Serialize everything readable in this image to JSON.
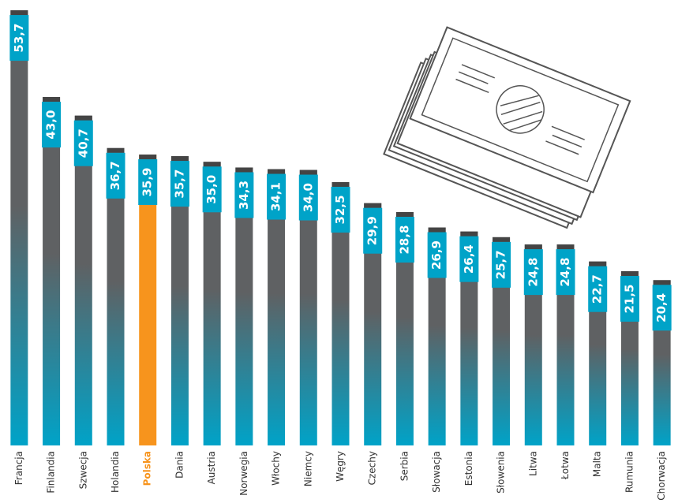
{
  "chart_data": {
    "type": "bar",
    "categories": [
      "Francja",
      "Finlandia",
      "Szwecja",
      "Holandia",
      "Polska",
      "Dania",
      "Austria",
      "Norwegia",
      "Włochy",
      "Niemcy",
      "Węgry",
      "Czechy",
      "Serbia",
      "Słowacja",
      "Estonia",
      "Słowenia",
      "Litwa",
      "Łotwa",
      "Malta",
      "Rumunia",
      "Chorwacja"
    ],
    "values": [
      53.7,
      43.0,
      40.7,
      36.7,
      35.9,
      35.7,
      35.0,
      34.3,
      34.1,
      34.0,
      32.5,
      29.9,
      28.8,
      26.9,
      26.4,
      25.7,
      24.8,
      24.8,
      22.7,
      21.5,
      20.4
    ],
    "value_labels": [
      "53,7",
      "43,0",
      "40,7",
      "36,7",
      "35,9",
      "35,7",
      "35,0",
      "34,3",
      "34,1",
      "34,0",
      "32,5",
      "29,9",
      "28,8",
      "26,9",
      "26,4",
      "25,7",
      "24,8",
      "24,8",
      "22,7",
      "21,5",
      "20,4"
    ],
    "color": "#00a3c8",
    "colors": [
      "#00a3c8",
      "#00a3c8",
      "#00a3c8",
      "#00a3c8",
      "#f7941d",
      "#00a3c8",
      "#00a3c8",
      "#00a3c8",
      "#00a3c8",
      "#00a3c8",
      "#00a3c8",
      "#00a3c8",
      "#00a3c8",
      "#00a3c8",
      "#00a3c8",
      "#00a3c8",
      "#00a3c8",
      "#00a3c8",
      "#00a3c8",
      "#00a3c8",
      "#00a3c8"
    ],
    "ylim": [
      0,
      54
    ]
  }
}
